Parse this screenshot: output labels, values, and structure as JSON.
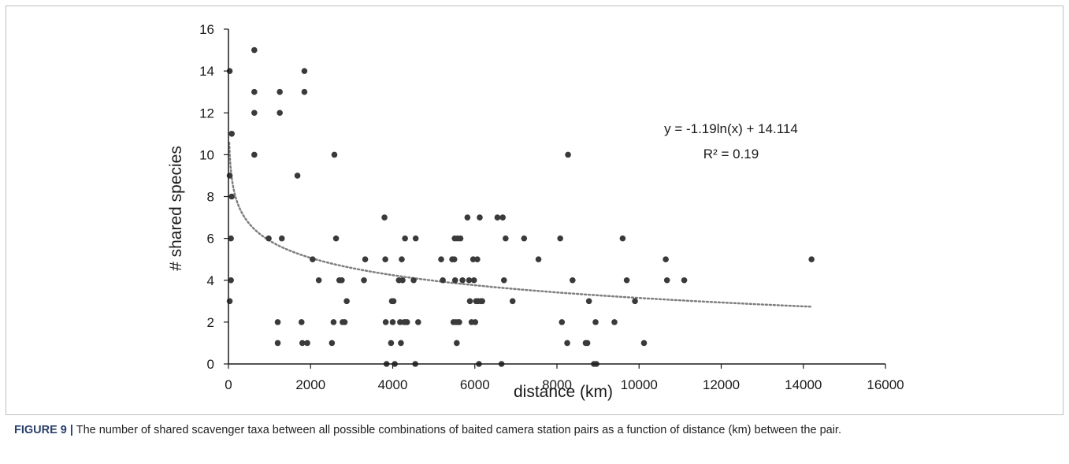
{
  "caption": {
    "label": "FIGURE 9 |",
    "text": " The number of shared scavenger taxa between all possible combinations of baited camera station pairs as a function of distance (km) between the pair."
  },
  "chart_data": {
    "type": "scatter",
    "xlabel": "distance (km)",
    "ylabel": "# shared species",
    "xlim": [
      0,
      16000
    ],
    "ylim": [
      0,
      16
    ],
    "x_ticks": [
      0,
      2000,
      4000,
      6000,
      8000,
      10000,
      12000,
      14000,
      16000
    ],
    "y_ticks": [
      0,
      2,
      4,
      6,
      8,
      10,
      12,
      14,
      16
    ],
    "grid": false,
    "marker_color": "#3a3a3a",
    "trendline": {
      "type": "logarithmic",
      "style": "dotted",
      "color": "#7f7f7f",
      "a": -1.19,
      "b": 14.114,
      "x_range": [
        10,
        14200
      ],
      "equation": "y = -1.19ln(x) + 14.114",
      "r2": "R² = 0.19"
    },
    "points": [
      [
        30,
        14
      ],
      [
        30,
        9
      ],
      [
        80,
        11
      ],
      [
        80,
        8
      ],
      [
        60,
        6
      ],
      [
        60,
        4
      ],
      [
        30,
        3
      ],
      [
        630,
        15
      ],
      [
        630,
        13
      ],
      [
        630,
        12
      ],
      [
        630,
        10
      ],
      [
        980,
        6
      ],
      [
        1200,
        2
      ],
      [
        1200,
        1
      ],
      [
        1250,
        13
      ],
      [
        1250,
        12
      ],
      [
        1300,
        6
      ],
      [
        1680,
        9
      ],
      [
        1780,
        2
      ],
      [
        1800,
        1
      ],
      [
        1850,
        14
      ],
      [
        1850,
        13
      ],
      [
        1920,
        1
      ],
      [
        2050,
        5
      ],
      [
        2200,
        4
      ],
      [
        2520,
        1
      ],
      [
        2560,
        2
      ],
      [
        2580,
        10
      ],
      [
        2620,
        6
      ],
      [
        2700,
        4
      ],
      [
        2760,
        4
      ],
      [
        2780,
        2
      ],
      [
        2830,
        2
      ],
      [
        2880,
        3
      ],
      [
        3300,
        4
      ],
      [
        3330,
        5
      ],
      [
        3800,
        7
      ],
      [
        3820,
        5
      ],
      [
        3830,
        2
      ],
      [
        3850,
        0
      ],
      [
        3960,
        1
      ],
      [
        3980,
        3
      ],
      [
        4000,
        2
      ],
      [
        4020,
        3
      ],
      [
        4050,
        0
      ],
      [
        4150,
        4
      ],
      [
        4180,
        2
      ],
      [
        4200,
        1
      ],
      [
        4220,
        5
      ],
      [
        4240,
        4
      ],
      [
        4280,
        2
      ],
      [
        4300,
        6
      ],
      [
        4320,
        2
      ],
      [
        4350,
        2
      ],
      [
        4510,
        4
      ],
      [
        4550,
        0
      ],
      [
        4560,
        6
      ],
      [
        4620,
        2
      ],
      [
        5180,
        5
      ],
      [
        5220,
        4
      ],
      [
        5450,
        5
      ],
      [
        5480,
        2
      ],
      [
        5500,
        5
      ],
      [
        5510,
        6
      ],
      [
        5520,
        4
      ],
      [
        5540,
        2
      ],
      [
        5560,
        1
      ],
      [
        5580,
        6
      ],
      [
        5600,
        2
      ],
      [
        5620,
        2
      ],
      [
        5650,
        6
      ],
      [
        5700,
        4
      ],
      [
        5820,
        7
      ],
      [
        5860,
        4
      ],
      [
        5880,
        3
      ],
      [
        5920,
        2
      ],
      [
        5960,
        5
      ],
      [
        5980,
        4
      ],
      [
        6010,
        2
      ],
      [
        6030,
        3
      ],
      [
        6060,
        5
      ],
      [
        6080,
        3
      ],
      [
        6100,
        0
      ],
      [
        6120,
        7
      ],
      [
        6150,
        3
      ],
      [
        6180,
        3
      ],
      [
        6550,
        7
      ],
      [
        6650,
        0
      ],
      [
        6680,
        7
      ],
      [
        6710,
        4
      ],
      [
        6750,
        6
      ],
      [
        6920,
        3
      ],
      [
        7200,
        6
      ],
      [
        7550,
        5
      ],
      [
        8080,
        6
      ],
      [
        8120,
        2
      ],
      [
        8250,
        1
      ],
      [
        8270,
        10
      ],
      [
        8380,
        4
      ],
      [
        8700,
        1
      ],
      [
        8740,
        1
      ],
      [
        8780,
        3
      ],
      [
        8900,
        0
      ],
      [
        8940,
        2
      ],
      [
        8960,
        0
      ],
      [
        9400,
        2
      ],
      [
        9600,
        6
      ],
      [
        9700,
        4
      ],
      [
        9900,
        3
      ],
      [
        10120,
        1
      ],
      [
        10650,
        5
      ],
      [
        10680,
        4
      ],
      [
        11100,
        4
      ],
      [
        14200,
        5
      ]
    ]
  }
}
